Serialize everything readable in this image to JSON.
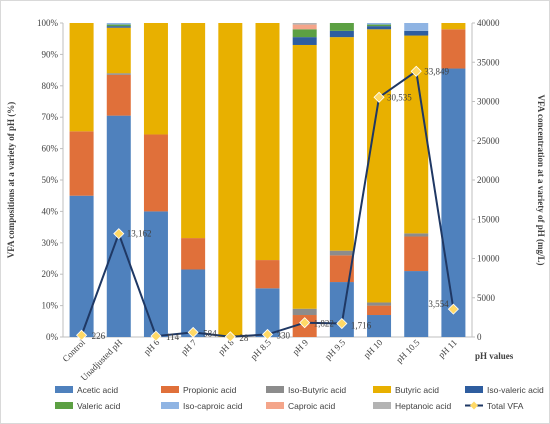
{
  "chart_data": {
    "type": "bar",
    "stacked": true,
    "categories": [
      "Control",
      "Unadjusted pH",
      "pH 6",
      "pH 7",
      "pH 8",
      "pH 8.5",
      "pH 9",
      "pH 9.5",
      "pH 10",
      "pH 10.5",
      "pH 11"
    ],
    "xlabel": "pH values",
    "ylabel_left": "VFA compositions at a variety of pH (%)",
    "ylabel_right": "VFA concentration at a variety of pH (mg/L)",
    "ylim_left": [
      0,
      100
    ],
    "ylim_right": [
      0,
      40000
    ],
    "yticks_left": [
      "0%",
      "10%",
      "20%",
      "30%",
      "40%",
      "50%",
      "60%",
      "70%",
      "80%",
      "90%",
      "100%"
    ],
    "yticks_right": [
      "0",
      "5000",
      "10000",
      "15000",
      "20000",
      "25000",
      "30000",
      "35000",
      "40000"
    ],
    "series": [
      {
        "name": "Acetic acid",
        "color": "#4f81bd",
        "values": [
          45,
          70.5,
          40,
          21.5,
          0,
          15.5,
          0,
          17.5,
          7,
          21,
          85.5
        ]
      },
      {
        "name": "Propionic acid",
        "color": "#e0703a",
        "values": [
          20.5,
          13,
          24.5,
          10,
          0,
          9,
          7,
          8.5,
          3,
          11,
          12.5
        ]
      },
      {
        "name": "Iso-Butyric acid",
        "color": "#8c8c8c",
        "values": [
          0,
          0.5,
          0,
          0,
          0,
          0,
          2,
          1.5,
          1,
          1,
          0
        ]
      },
      {
        "name": "Butyric acid",
        "color": "#e8b000",
        "values": [
          34.5,
          14.5,
          35.5,
          68.5,
          100,
          75.5,
          84,
          68,
          87,
          63,
          2
        ]
      },
      {
        "name": "Iso-valeric acid",
        "color": "#2e5d9f",
        "values": [
          0,
          0.5,
          0,
          0,
          0,
          0,
          2.5,
          2,
          1,
          1.5,
          0
        ]
      },
      {
        "name": "Valeric acid",
        "color": "#5ca043",
        "values": [
          0,
          0.5,
          0,
          0,
          0,
          0,
          2.5,
          2.5,
          0.5,
          0,
          0
        ]
      },
      {
        "name": "Iso-caproic acid",
        "color": "#8fb4e3",
        "values": [
          0,
          0.5,
          0,
          0,
          0,
          0,
          0,
          0,
          0.5,
          2.5,
          0
        ]
      },
      {
        "name": "Caproic acid",
        "color": "#f4a58a",
        "values": [
          0,
          0,
          0,
          0,
          0,
          0,
          1.5,
          0,
          0,
          0,
          0
        ]
      },
      {
        "name": "Heptanoic acid",
        "color": "#b3b3b3",
        "values": [
          0,
          0,
          0,
          0,
          0,
          0,
          0.5,
          0,
          0,
          0,
          0
        ]
      }
    ],
    "line": {
      "name": "Total VFA",
      "color": "#1f3864",
      "marker_color": "#ffd966",
      "values": [
        226,
        13162,
        114,
        584,
        28,
        330,
        1822,
        1716,
        30535,
        33849,
        3554
      ],
      "labels": [
        "226",
        "13,162",
        "114",
        "584",
        "28",
        "330",
        "1,822",
        "1,716",
        "30,535",
        "33,849",
        "3,554"
      ]
    },
    "legend_position": "bottom"
  }
}
